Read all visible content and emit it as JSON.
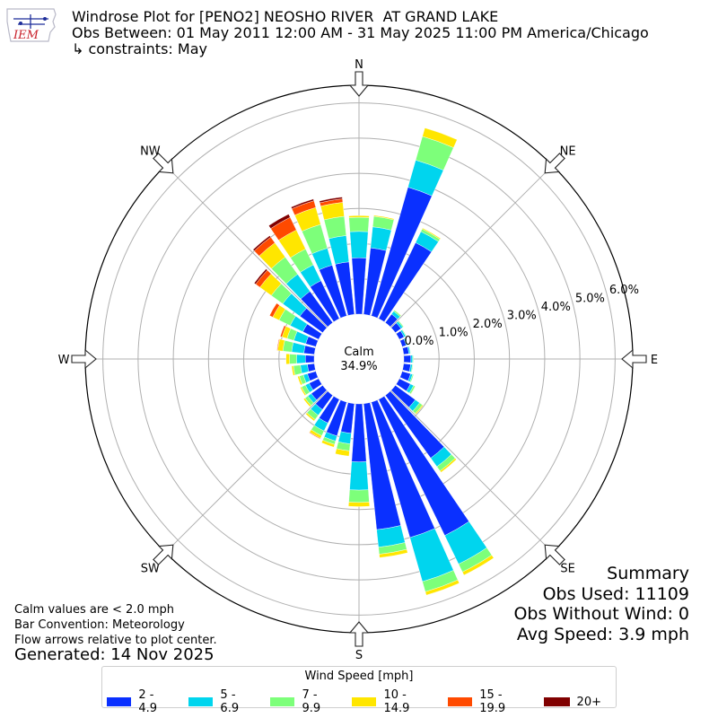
{
  "logo": {
    "text": "IEM"
  },
  "title": {
    "line1": "Windrose Plot for [PENO2] NEOSHO RIVER  AT GRAND LAKE",
    "line2": "Obs Between: 01 May 2011 12:00 AM - 31 May 2025 11:00 PM America/Chicago",
    "line3": "↳ constraints: May"
  },
  "notes": {
    "calm_note": "Calm values are < 2.0 mph",
    "bar_convention": "Bar Convention: Meteorology",
    "flow_note": "Flow arrows relative to plot center.",
    "generated": "Generated: 14 Nov 2025"
  },
  "summary": {
    "heading": "Summary",
    "obs_used": "Obs Used: 11109",
    "obs_without_wind": "Obs Without Wind: 0",
    "avg_speed": "Avg Speed: 3.9 mph"
  },
  "calm": {
    "label": "Calm",
    "value": "34.9%"
  },
  "chart_data": {
    "type": "windrose",
    "title": "Windrose Plot for [PENO2] NEOSHO RIVER  AT GRAND LAKE",
    "radial_unit": "%",
    "radial_ticks": [
      "0.0%",
      "1.0%",
      "2.0%",
      "3.0%",
      "4.0%",
      "5.0%",
      "6.0%"
    ],
    "rmax": 6.5,
    "direction_labels": [
      "N",
      "NE",
      "E",
      "SE",
      "S",
      "SW",
      "W",
      "NW"
    ],
    "legend_title": "Wind Speed [mph]",
    "speed_bins": [
      {
        "name": "2 - 4.9",
        "color": "#0a30ff"
      },
      {
        "name": "5 - 6.9",
        "color": "#00d5ee"
      },
      {
        "name": "7 - 9.9",
        "color": "#7dff7a"
      },
      {
        "name": "10 - 14.9",
        "color": "#ffe600"
      },
      {
        "name": "15 - 19.9",
        "color": "#ff4a00"
      },
      {
        "name": "20+",
        "color": "#800000"
      }
    ],
    "directions_deg": [
      0,
      10,
      20,
      30,
      40,
      50,
      60,
      70,
      80,
      90,
      100,
      110,
      120,
      130,
      140,
      150,
      160,
      170,
      180,
      190,
      200,
      210,
      220,
      230,
      240,
      250,
      260,
      270,
      280,
      290,
      300,
      310,
      320,
      330,
      340,
      350
    ],
    "values": [
      [
        1.6,
        0.75,
        0.4,
        0.05,
        0,
        0
      ],
      [
        1.9,
        0.6,
        0.3,
        0.03,
        0,
        0
      ],
      [
        3.8,
        0.8,
        0.7,
        0.25,
        0,
        0
      ],
      [
        2.4,
        0.35,
        0.08,
        0.03,
        0,
        0
      ],
      [
        0.3,
        0.1,
        0.04,
        0.01,
        0,
        0
      ],
      [
        0.2,
        0.06,
        0.03,
        0,
        0,
        0
      ],
      [
        0.15,
        0.05,
        0.02,
        0,
        0,
        0
      ],
      [
        0.12,
        0.04,
        0.01,
        0,
        0,
        0
      ],
      [
        0.15,
        0.04,
        0.01,
        0,
        0,
        0
      ],
      [
        0.2,
        0.05,
        0.02,
        0,
        0,
        0
      ],
      [
        0.2,
        0.05,
        0.02,
        0,
        0,
        0
      ],
      [
        0.25,
        0.06,
        0.03,
        0,
        0,
        0
      ],
      [
        0.35,
        0.1,
        0.05,
        0.01,
        0,
        0
      ],
      [
        0.7,
        0.15,
        0.1,
        0.03,
        0,
        0
      ],
      [
        2.2,
        0.3,
        0.15,
        0.05,
        0,
        0
      ],
      [
        4.3,
        0.9,
        0.25,
        0.1,
        0,
        0
      ],
      [
        4.0,
        1.3,
        0.3,
        0.1,
        0,
        0
      ],
      [
        3.6,
        0.5,
        0.2,
        0.1,
        0,
        0
      ],
      [
        1.65,
        0.8,
        0.35,
        0.12,
        0,
        0
      ],
      [
        0.85,
        0.3,
        0.2,
        0.15,
        0,
        0
      ],
      [
        1.0,
        0.15,
        0.1,
        0.08,
        0,
        0
      ],
      [
        0.75,
        0.25,
        0.15,
        0.08,
        0.02,
        0
      ],
      [
        0.5,
        0.2,
        0.15,
        0.05,
        0,
        0
      ],
      [
        0.4,
        0.12,
        0.1,
        0.05,
        0,
        0
      ],
      [
        0.3,
        0.12,
        0.12,
        0.04,
        0,
        0
      ],
      [
        0.25,
        0.12,
        0.12,
        0.05,
        0,
        0
      ],
      [
        0.2,
        0.2,
        0.2,
        0.05,
        0,
        0
      ],
      [
        0.25,
        0.25,
        0.2,
        0.1,
        0,
        0
      ],
      [
        0.3,
        0.35,
        0.25,
        0.15,
        0.02,
        0
      ],
      [
        0.3,
        0.35,
        0.2,
        0.15,
        0.05,
        0
      ],
      [
        0.5,
        0.4,
        0.35,
        0.2,
        0.1,
        0
      ],
      [
        0.8,
        0.6,
        0.4,
        0.4,
        0.15,
        0.05
      ],
      [
        1.1,
        0.6,
        0.6,
        0.5,
        0.2,
        0.05
      ],
      [
        1.2,
        0.5,
        0.5,
        0.6,
        0.4,
        0.1
      ],
      [
        1.5,
        0.5,
        0.7,
        0.5,
        0.2,
        0.05
      ],
      [
        1.5,
        0.75,
        0.55,
        0.4,
        0.1,
        0.05
      ]
    ]
  }
}
